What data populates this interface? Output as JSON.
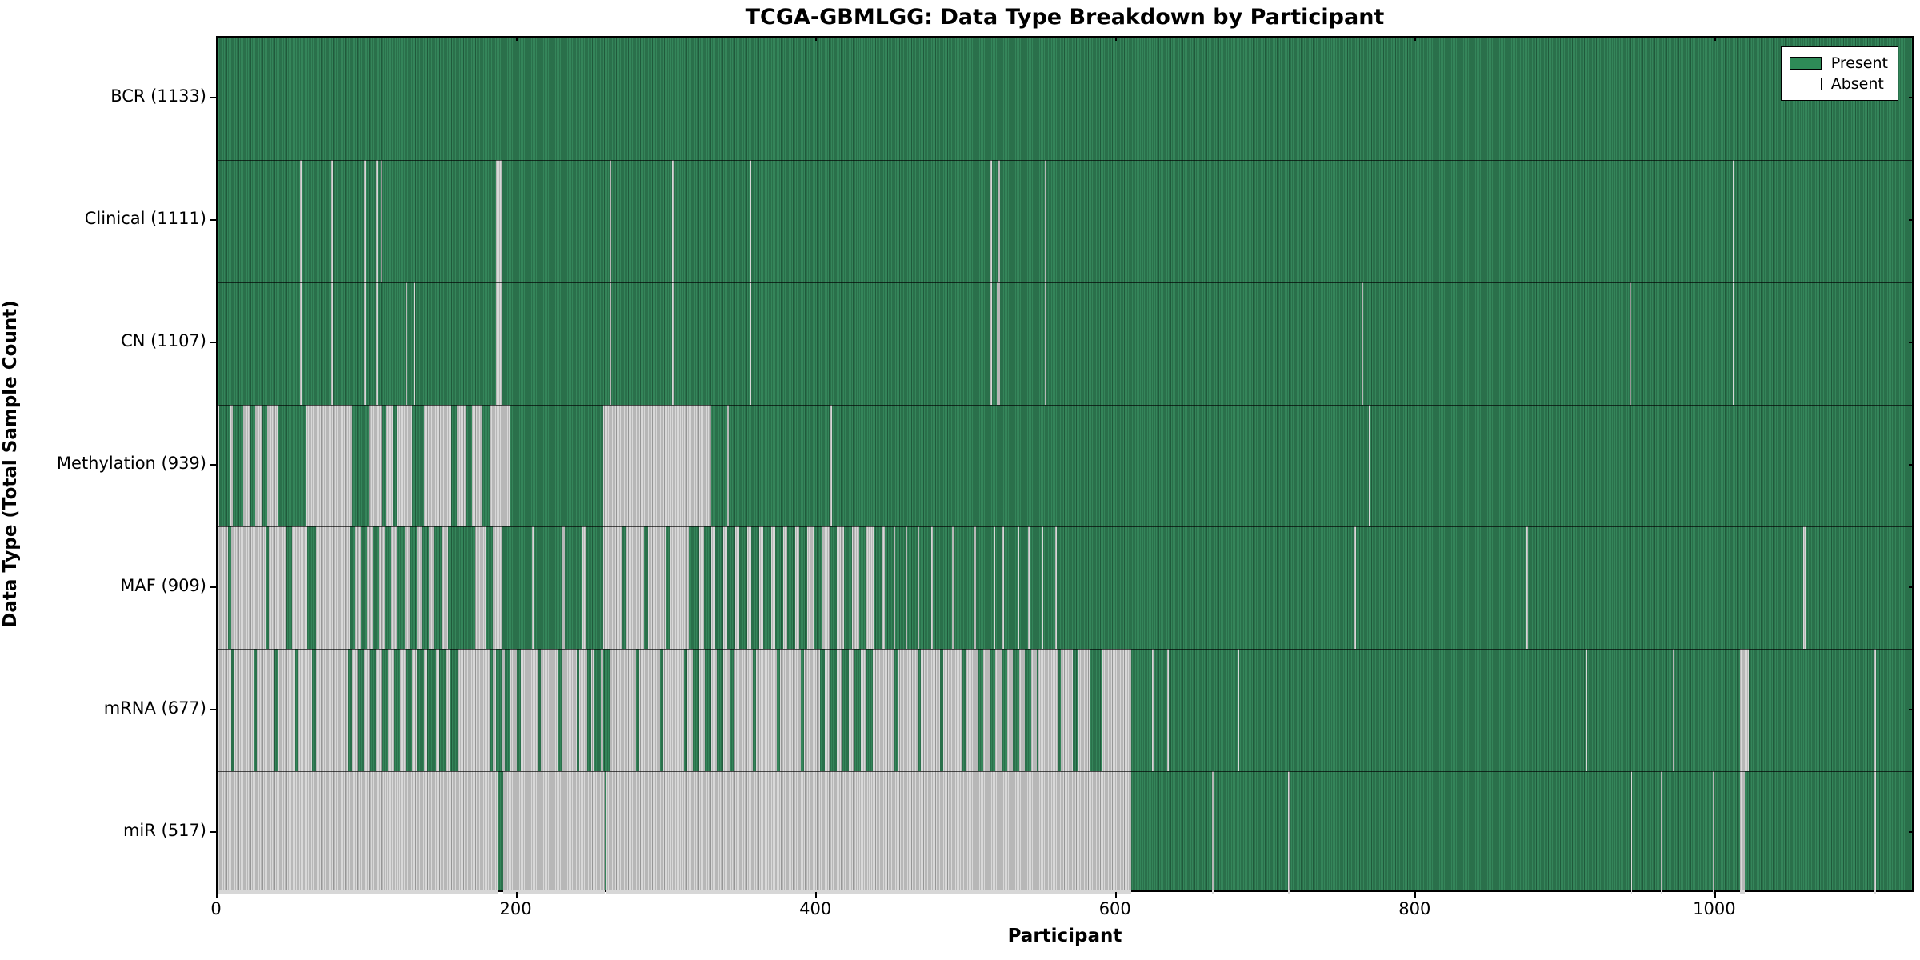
{
  "figure": {
    "title": "TCGA-GBMLGG: Data Type Breakdown by Participant"
  },
  "colors": {
    "present": "#2E8155",
    "absent": "#D7D7D7",
    "legend_present": "#2E8B57",
    "legend_absent": "#FFFFFF",
    "plot_border": "#000000",
    "background": "#FFFFFF"
  },
  "chart_data": {
    "type": "heatmap",
    "title": "TCGA-GBMLGG: Data Type Breakdown by Participant",
    "xlabel": "Participant",
    "ylabel": "Data Type (Total Sample Count)",
    "x_max": 1133,
    "x_ticks": [
      0,
      200,
      400,
      600,
      800,
      1000
    ],
    "grid": false,
    "cell_states": [
      "Present",
      "Absent"
    ],
    "legend": {
      "position": "upper right",
      "entries": [
        {
          "label": "Present",
          "color": "#2E8B57"
        },
        {
          "label": "Absent",
          "color": "#FFFFFF"
        }
      ]
    },
    "rows": [
      {
        "data_type": "BCR",
        "label": "BCR (1133)",
        "present_count": 1133,
        "absent_ranges": []
      },
      {
        "data_type": "Clinical",
        "label": "Clinical (1111)",
        "present_count": 1111,
        "absent_ranges": [
          [
            55,
            56
          ],
          [
            64,
            65
          ],
          [
            76,
            77
          ],
          [
            80,
            81
          ],
          [
            98,
            99
          ],
          [
            106,
            107
          ],
          [
            109,
            110
          ],
          [
            186,
            190
          ],
          [
            262,
            263
          ],
          [
            304,
            305
          ],
          [
            356,
            357
          ],
          [
            517,
            518
          ],
          [
            522,
            523
          ],
          [
            553,
            554
          ],
          [
            1013,
            1014
          ]
        ]
      },
      {
        "data_type": "CN",
        "label": "CN (1107)",
        "present_count": 1107,
        "absent_ranges": [
          [
            55,
            56
          ],
          [
            64,
            65
          ],
          [
            76,
            77
          ],
          [
            80,
            81
          ],
          [
            98,
            99
          ],
          [
            106,
            107
          ],
          [
            126,
            127
          ],
          [
            131,
            132
          ],
          [
            186,
            190
          ],
          [
            262,
            263
          ],
          [
            304,
            305
          ],
          [
            356,
            357
          ],
          [
            516,
            518
          ],
          [
            521,
            523
          ],
          [
            553,
            554
          ],
          [
            765,
            766
          ],
          [
            944,
            945
          ],
          [
            1013,
            1014
          ]
        ]
      },
      {
        "data_type": "Methylation",
        "label": "Methylation (939)",
        "present_count": 939,
        "absent_ranges": [
          [
            0,
            1
          ],
          [
            8,
            10
          ],
          [
            17,
            22
          ],
          [
            25,
            30
          ],
          [
            33,
            40
          ],
          [
            59,
            90
          ],
          [
            101,
            110
          ],
          [
            113,
            117
          ],
          [
            120,
            130
          ],
          [
            138,
            156
          ],
          [
            160,
            166
          ],
          [
            170,
            177
          ],
          [
            182,
            196
          ],
          [
            258,
            330
          ],
          [
            341,
            342
          ],
          [
            410,
            411
          ],
          [
            770,
            771
          ]
        ]
      },
      {
        "data_type": "MAF",
        "label": "MAF (909)",
        "present_count": 909,
        "absent_ranges": [
          [
            0,
            7
          ],
          [
            9,
            32
          ],
          [
            34,
            46
          ],
          [
            50,
            60
          ],
          [
            66,
            88
          ],
          [
            92,
            96
          ],
          [
            100,
            104
          ],
          [
            108,
            112
          ],
          [
            116,
            120
          ],
          [
            125,
            129
          ],
          [
            133,
            137
          ],
          [
            141,
            145
          ],
          [
            150,
            154
          ],
          [
            172,
            180
          ],
          [
            184,
            190
          ],
          [
            210,
            212
          ],
          [
            230,
            232
          ],
          [
            244,
            246
          ],
          [
            258,
            270
          ],
          [
            273,
            285
          ],
          [
            288,
            300
          ],
          [
            303,
            315
          ],
          [
            322,
            325
          ],
          [
            330,
            333
          ],
          [
            338,
            341
          ],
          [
            346,
            349
          ],
          [
            354,
            357
          ],
          [
            362,
            365
          ],
          [
            370,
            373
          ],
          [
            378,
            381
          ],
          [
            386,
            389
          ],
          [
            394,
            399
          ],
          [
            404,
            409
          ],
          [
            414,
            419
          ],
          [
            424,
            429
          ],
          [
            434,
            439
          ],
          [
            444,
            446
          ],
          [
            452,
            453
          ],
          [
            460,
            461
          ],
          [
            468,
            469
          ],
          [
            477,
            478
          ],
          [
            491,
            492
          ],
          [
            506,
            507
          ],
          [
            519,
            520
          ],
          [
            525,
            526
          ],
          [
            535,
            536
          ],
          [
            542,
            543
          ],
          [
            551,
            552
          ],
          [
            560,
            561
          ],
          [
            760,
            761
          ],
          [
            875,
            876
          ],
          [
            1060,
            1062
          ]
        ]
      },
      {
        "data_type": "mRNA",
        "label": "mRNA (677)",
        "present_count": 677,
        "absent_ranges": [
          [
            0,
            9
          ],
          [
            11,
            24
          ],
          [
            26,
            38
          ],
          [
            40,
            52
          ],
          [
            54,
            63
          ],
          [
            66,
            87
          ],
          [
            90,
            94
          ],
          [
            98,
            102
          ],
          [
            106,
            110
          ],
          [
            114,
            118
          ],
          [
            122,
            126
          ],
          [
            130,
            133
          ],
          [
            138,
            140
          ],
          [
            146,
            148
          ],
          [
            153,
            155
          ],
          [
            161,
            182
          ],
          [
            184,
            186
          ],
          [
            190,
            192
          ],
          [
            196,
            200
          ],
          [
            203,
            214
          ],
          [
            216,
            228
          ],
          [
            230,
            240
          ],
          [
            242,
            247
          ],
          [
            250,
            252
          ],
          [
            256,
            258
          ],
          [
            262,
            280
          ],
          [
            282,
            296
          ],
          [
            298,
            312
          ],
          [
            314,
            318
          ],
          [
            322,
            326
          ],
          [
            330,
            334
          ],
          [
            338,
            343
          ],
          [
            345,
            358
          ],
          [
            360,
            374
          ],
          [
            376,
            390
          ],
          [
            392,
            403
          ],
          [
            406,
            410
          ],
          [
            414,
            418
          ],
          [
            422,
            426
          ],
          [
            430,
            434
          ],
          [
            438,
            452
          ],
          [
            455,
            468
          ],
          [
            470,
            483
          ],
          [
            485,
            498
          ],
          [
            500,
            509
          ],
          [
            512,
            516
          ],
          [
            520,
            524
          ],
          [
            528,
            532
          ],
          [
            536,
            540
          ],
          [
            544,
            548
          ],
          [
            549,
            562
          ],
          [
            564,
            572
          ],
          [
            575,
            583
          ],
          [
            591,
            611
          ],
          [
            625,
            626
          ],
          [
            635,
            636
          ],
          [
            682,
            683
          ],
          [
            915,
            916
          ],
          [
            973,
            974
          ],
          [
            1018,
            1024
          ],
          [
            1108,
            1109
          ]
        ]
      },
      {
        "data_type": "miR",
        "label": "miR (517)",
        "present_count": 517,
        "absent_ranges": [
          [
            0,
            188
          ],
          [
            191,
            259
          ],
          [
            260,
            611
          ],
          [
            665,
            666
          ],
          [
            716,
            717
          ],
          [
            945,
            946
          ],
          [
            965,
            966
          ],
          [
            1000,
            1001
          ],
          [
            1018,
            1021
          ],
          [
            1108,
            1109
          ]
        ]
      }
    ]
  }
}
